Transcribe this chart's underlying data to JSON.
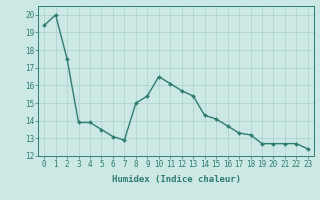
{
  "x": [
    0,
    1,
    2,
    3,
    4,
    5,
    6,
    7,
    8,
    9,
    10,
    11,
    12,
    13,
    14,
    15,
    16,
    17,
    18,
    19,
    20,
    21,
    22,
    23
  ],
  "y": [
    19.4,
    20.0,
    17.5,
    13.9,
    13.9,
    13.5,
    13.1,
    12.9,
    15.0,
    15.4,
    16.5,
    16.1,
    15.7,
    15.4,
    14.3,
    14.1,
    13.7,
    13.3,
    13.2,
    12.7,
    12.7,
    12.7,
    12.7,
    12.4
  ],
  "line_color": "#2e7d6e",
  "marker": "D",
  "marker_size": 2,
  "bg_color": "#cce8e4",
  "grid_color": "#aad0cc",
  "xlabel": "Humidex (Indice chaleur)",
  "xlim": [
    -0.5,
    23.5
  ],
  "ylim": [
    12,
    20.5
  ],
  "yticks": [
    12,
    13,
    14,
    15,
    16,
    17,
    18,
    19,
    20
  ],
  "xticks": [
    0,
    1,
    2,
    3,
    4,
    5,
    6,
    7,
    8,
    9,
    10,
    11,
    12,
    13,
    14,
    15,
    16,
    17,
    18,
    19,
    20,
    21,
    22,
    23
  ],
  "tick_fontsize": 5.5,
  "xlabel_fontsize": 6.5,
  "line_width": 1.0
}
